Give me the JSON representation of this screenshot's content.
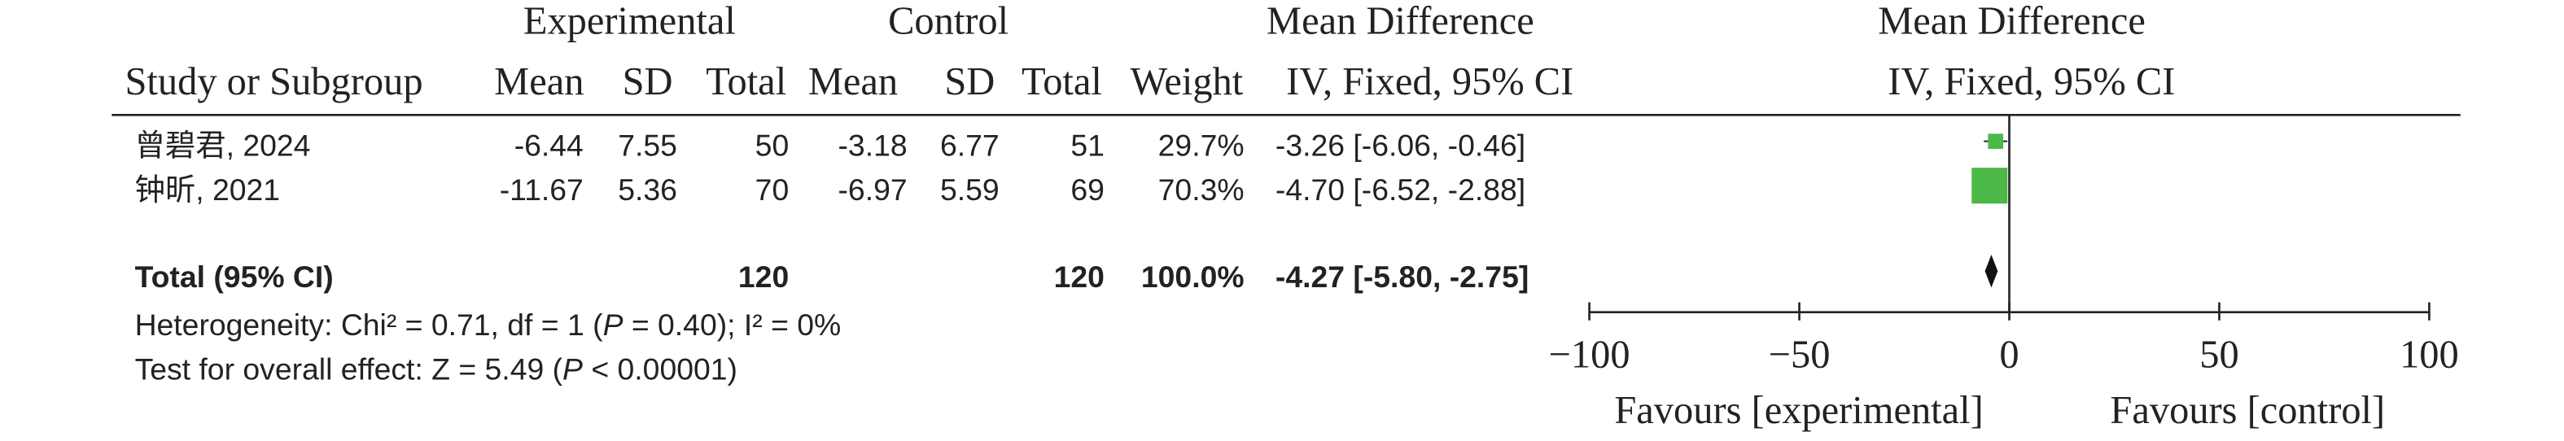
{
  "header": {
    "group_exp": "Experimental",
    "group_ctl": "Control",
    "md_title": "Mean Difference",
    "plot_title": "Mean Difference",
    "columns": [
      "Study or Subgroup",
      "Mean",
      "SD",
      "Total",
      "Mean",
      "SD",
      "Total",
      "Weight",
      "IV, Fixed, 95% CI"
    ],
    "plot_method": "IV, Fixed, 95% CI"
  },
  "chart_data": {
    "type": "forest",
    "color": "#4cb848",
    "studies": [
      {
        "name": "曾碧君, 2024",
        "exp_mean": -6.44,
        "exp_sd": 7.55,
        "exp_total": 50,
        "ctl_mean": -3.18,
        "ctl_sd": 6.77,
        "ctl_total": 51,
        "weight": 29.7,
        "weight_label": "29.7%",
        "md": -3.26,
        "ci": [
          -6.06,
          -0.46
        ],
        "md_label": "-3.26 [-6.06, -0.46]"
      },
      {
        "name": "钟昕, 2021",
        "exp_mean": -11.67,
        "exp_sd": 5.36,
        "exp_total": 70,
        "ctl_mean": -6.97,
        "ctl_sd": 5.59,
        "ctl_total": 69,
        "weight": 70.3,
        "weight_label": "70.3%",
        "md": -4.7,
        "ci": [
          -6.52,
          -2.88
        ],
        "md_label": "-4.70 [-6.52, -2.88]"
      }
    ],
    "total": {
      "name": "Total (95% CI)",
      "exp_total": 120,
      "ctl_total": 120,
      "weight": 100,
      "weight_label": "100.0%",
      "md": -4.27,
      "ci": [
        -5.8,
        -2.75
      ],
      "md_label": "-4.27 [-5.80, -2.75]"
    },
    "heterogeneity": [
      "Heterogeneity: Chi² = 0.71, df = 1 (",
      "P",
      " = 0.40); I² = 0%"
    ],
    "overall_effect": [
      "Test for overall effect: Z = 5.49 (",
      "P",
      " < 0.00001)"
    ],
    "xlim": [
      -100,
      100
    ],
    "xticks": [
      {
        "value": -100,
        "label": "−100"
      },
      {
        "value": -50,
        "label": "−50"
      },
      0,
      50,
      100
    ],
    "favours_left": "Favours [experimental]",
    "favours_right": "Favours [control]"
  }
}
